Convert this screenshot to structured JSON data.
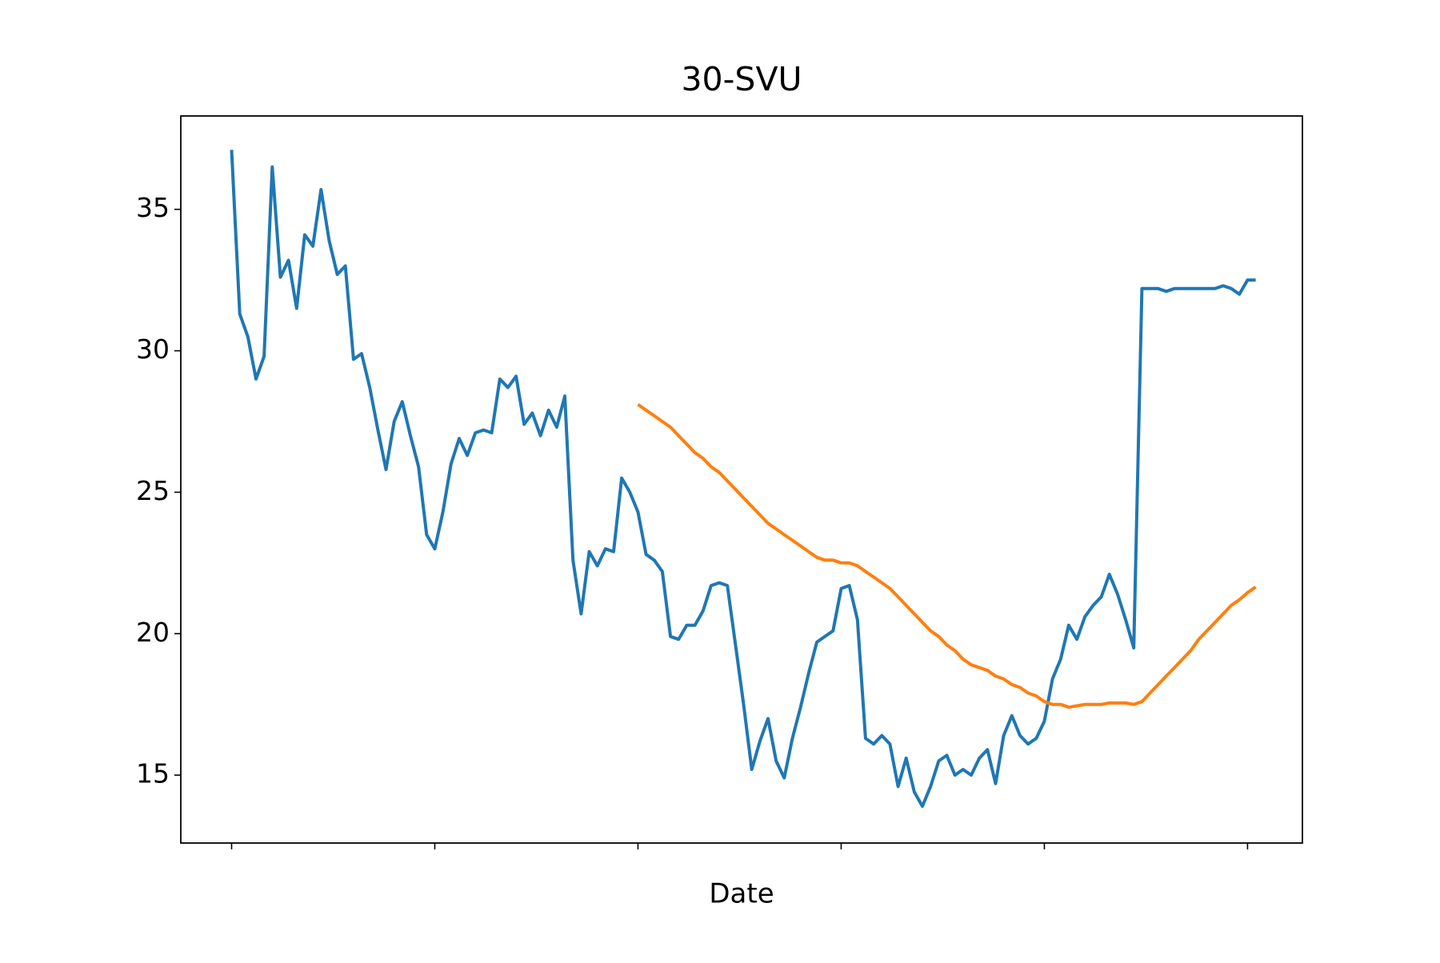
{
  "chart_data": {
    "type": "line",
    "title": "30-SVU",
    "x_label": "Date",
    "x": [
      0,
      4,
      8,
      12,
      16,
      20,
      24,
      28,
      32,
      36,
      40,
      44,
      48,
      52,
      56,
      60,
      64,
      68,
      72,
      76,
      80,
      84,
      88,
      92,
      96,
      100,
      104,
      108,
      112,
      116,
      120,
      124,
      128,
      132,
      136,
      140,
      144,
      148,
      152,
      156,
      160,
      164,
      168,
      172,
      176,
      180,
      184,
      188,
      192,
      196,
      200,
      204,
      208,
      212,
      216,
      220,
      224,
      228,
      232,
      236,
      240,
      244,
      248,
      252,
      256,
      260,
      264,
      268,
      272,
      276,
      280,
      284,
      288,
      292,
      296,
      300,
      304,
      308,
      312,
      316,
      320,
      324,
      328,
      332,
      336,
      340,
      344,
      348,
      352,
      356,
      360,
      364,
      368,
      372,
      376,
      380,
      384,
      388,
      392,
      396,
      400,
      404,
      408,
      412,
      416,
      420,
      424,
      428,
      432,
      436,
      440,
      444,
      448,
      452,
      456,
      460,
      464,
      468,
      472,
      476,
      480,
      484,
      488,
      492,
      496,
      500,
      504
    ],
    "series": [
      {
        "color": "#1f77b4",
        "values": [
          37.1,
          31.3,
          30.5,
          29.0,
          29.8,
          36.5,
          32.6,
          33.2,
          31.5,
          34.1,
          33.7,
          35.7,
          33.9,
          32.7,
          33.0,
          29.7,
          29.9,
          28.7,
          27.2,
          25.8,
          27.5,
          28.2,
          27.0,
          25.9,
          23.5,
          23.0,
          24.3,
          26.0,
          26.9,
          26.3,
          27.1,
          27.2,
          27.1,
          29.0,
          28.7,
          29.1,
          27.4,
          27.8,
          27.0,
          27.9,
          27.3,
          28.4,
          22.6,
          20.7,
          22.9,
          22.4,
          23.0,
          22.9,
          25.5,
          25.0,
          24.3,
          22.8,
          22.6,
          22.2,
          19.9,
          19.8,
          20.3,
          20.3,
          20.8,
          21.7,
          21.8,
          21.7,
          19.6,
          17.5,
          15.2,
          16.2,
          17.0,
          15.5,
          14.9,
          16.3,
          17.4,
          18.6,
          19.7,
          19.9,
          20.1,
          21.6,
          21.7,
          20.5,
          16.3,
          16.1,
          16.4,
          16.1,
          14.6,
          15.6,
          14.4,
          13.9,
          14.6,
          15.5,
          15.7,
          15.0,
          15.2,
          15.0,
          15.6,
          15.9,
          14.7,
          16.4,
          17.1,
          16.4,
          16.1,
          16.3,
          16.9,
          18.4,
          19.1,
          20.3,
          19.8,
          20.6,
          21.0,
          21.3,
          22.1,
          21.4,
          20.5,
          19.5,
          32.2,
          32.2,
          32.2,
          32.1,
          32.2,
          32.2,
          32.2,
          32.2,
          32.2,
          32.2,
          32.3,
          32.2,
          32.0,
          32.5,
          32.5
        ]
      },
      {
        "color": "#ff7f0e",
        "values": [
          null,
          null,
          null,
          null,
          null,
          null,
          null,
          null,
          null,
          null,
          null,
          null,
          null,
          null,
          null,
          null,
          null,
          null,
          null,
          null,
          null,
          null,
          null,
          null,
          null,
          null,
          null,
          null,
          null,
          null,
          null,
          null,
          null,
          null,
          null,
          null,
          null,
          null,
          null,
          null,
          null,
          null,
          null,
          null,
          null,
          null,
          null,
          null,
          null,
          null,
          28.1,
          27.9,
          27.7,
          27.5,
          27.3,
          27.0,
          26.7,
          26.4,
          26.2,
          25.9,
          25.7,
          25.4,
          25.1,
          24.8,
          24.5,
          24.2,
          23.9,
          23.7,
          23.5,
          23.3,
          23.1,
          22.9,
          22.7,
          22.6,
          22.6,
          22.5,
          22.5,
          22.4,
          22.2,
          22.0,
          21.8,
          21.6,
          21.3,
          21.0,
          20.7,
          20.4,
          20.1,
          19.9,
          19.6,
          19.4,
          19.1,
          18.9,
          18.8,
          18.7,
          18.5,
          18.4,
          18.2,
          18.1,
          17.9,
          17.8,
          17.6,
          17.5,
          17.5,
          17.4,
          17.45,
          17.5,
          17.5,
          17.5,
          17.55,
          17.55,
          17.55,
          17.5,
          17.6,
          17.9,
          18.2,
          18.5,
          18.8,
          19.1,
          19.4,
          19.8,
          20.1,
          20.4,
          20.7,
          21.0,
          21.2,
          21.45,
          21.65
        ]
      }
    ],
    "xlim": [
      -25,
      527
    ],
    "xticks": [
      0,
      100,
      200,
      300,
      400,
      500
    ],
    "ylim": [
      12.6,
      38.3
    ],
    "yticks": [
      15,
      20,
      25,
      30,
      35
    ]
  }
}
